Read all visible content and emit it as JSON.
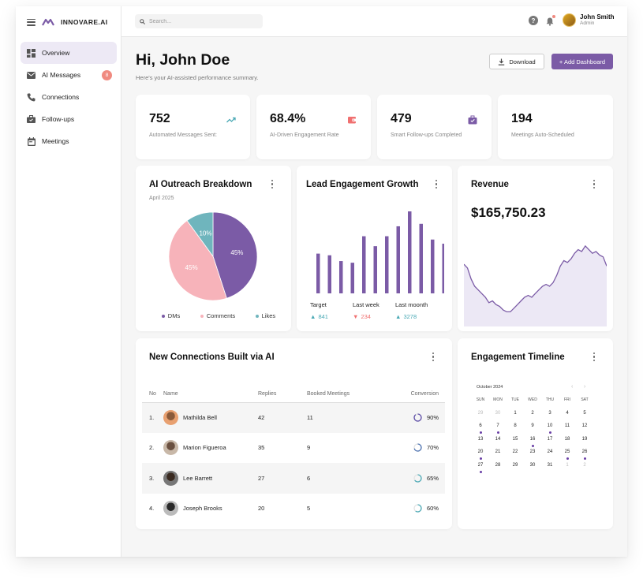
{
  "brand": {
    "name": "INNOVARE.AI"
  },
  "sidebar": {
    "items": [
      {
        "label": "Overview",
        "icon": "grid-icon",
        "active": true
      },
      {
        "label": "AI Messages",
        "icon": "mail-icon",
        "badge": "8"
      },
      {
        "label": "Connections",
        "icon": "phone-icon"
      },
      {
        "label": "Follow-ups",
        "icon": "briefcase-icon"
      },
      {
        "label": "Meetings",
        "icon": "calendar-icon"
      }
    ]
  },
  "topbar": {
    "search_placeholder": "Search...",
    "user": {
      "name": "John Smith",
      "role": "Admin"
    }
  },
  "header": {
    "greeting": "Hi, John Doe",
    "subtitle": "Here's your AI-assisted performance summary.",
    "download_label": "Download",
    "add_label": "+ Add Dashboard"
  },
  "stats": [
    {
      "value": "752",
      "label": "Automated Messages Sent:",
      "icon": "trend-up-icon"
    },
    {
      "value": "68.4%",
      "label": "AI-Driven Engagement Rate",
      "icon": "wallet-icon"
    },
    {
      "value": "479",
      "label": "Smart Follow-ups Completed",
      "icon": "briefcase-check-icon"
    },
    {
      "value": "194",
      "label": "Meetings Auto-Scheduled",
      "icon": ""
    }
  ],
  "outreach": {
    "title": "AI Outreach Breakdown",
    "period": "April 2025",
    "legend": [
      "DMs",
      "Comments",
      "Likes"
    ]
  },
  "engagement": {
    "title": "Lead Engagement Growth",
    "metrics": [
      {
        "label": "Target",
        "value": "841",
        "direction": "up"
      },
      {
        "label": "Last week",
        "value": "234",
        "direction": "down"
      },
      {
        "label": "Last moonth",
        "value": "3278",
        "direction": "up"
      }
    ]
  },
  "revenue": {
    "title": "Revenue",
    "amount": "$165,750.23"
  },
  "connections": {
    "title": "New Connections Built via AI",
    "columns": [
      "No",
      "Name",
      "Replies",
      "Booked Meetings",
      "Conversion"
    ],
    "rows": [
      {
        "no": "1.",
        "name": "Mathilda Bell",
        "replies": "42",
        "booked": "11",
        "conversion": "90%",
        "pct": 0.9
      },
      {
        "no": "2.",
        "name": "Marion Figueroa",
        "replies": "35",
        "booked": "9",
        "conversion": "70%",
        "pct": 0.7
      },
      {
        "no": "3.",
        "name": "Lee Barrett",
        "replies": "27",
        "booked": "6",
        "conversion": "65%",
        "pct": 0.65
      },
      {
        "no": "4.",
        "name": "Joseph Brooks",
        "replies": "20",
        "booked": "5",
        "conversion": "60%",
        "pct": 0.6
      }
    ]
  },
  "timeline": {
    "title": "Engagement Timeline",
    "month": "October 2024",
    "weekdays": [
      "SUN",
      "MON",
      "TUE",
      "WED",
      "THU",
      "FRI",
      "SAT"
    ],
    "days": [
      {
        "d": "29",
        "m": true
      },
      {
        "d": "30",
        "m": true
      },
      {
        "d": "1"
      },
      {
        "d": "2"
      },
      {
        "d": "3"
      },
      {
        "d": "4"
      },
      {
        "d": "5"
      },
      {
        "d": "6",
        "e": true
      },
      {
        "d": "7",
        "e": true
      },
      {
        "d": "8"
      },
      {
        "d": "9"
      },
      {
        "d": "10",
        "e": true
      },
      {
        "d": "11"
      },
      {
        "d": "12"
      },
      {
        "d": "13"
      },
      {
        "d": "14"
      },
      {
        "d": "15"
      },
      {
        "d": "16",
        "e": true
      },
      {
        "d": "17"
      },
      {
        "d": "18"
      },
      {
        "d": "19"
      },
      {
        "d": "20",
        "e": true
      },
      {
        "d": "21"
      },
      {
        "d": "22"
      },
      {
        "d": "23"
      },
      {
        "d": "24"
      },
      {
        "d": "25",
        "e": true
      },
      {
        "d": "26",
        "e": true
      },
      {
        "d": "27",
        "e": true
      },
      {
        "d": "28"
      },
      {
        "d": "29"
      },
      {
        "d": "30"
      },
      {
        "d": "31"
      },
      {
        "d": "1",
        "m": true
      },
      {
        "d": "2",
        "m": true
      }
    ]
  },
  "colors": {
    "accent": "#7b5ba6",
    "coral": "#f08a80",
    "teal": "#5fb0bb",
    "pink": "#f7b3ba"
  },
  "chart_data": [
    {
      "type": "pie",
      "categories": [
        "DMs",
        "Comments",
        "Likes"
      ],
      "values": [
        45,
        45,
        10
      ],
      "labels": [
        "45%",
        "45%",
        "10%"
      ],
      "colors": [
        "#7b5ba6",
        "#f7b3ba",
        "#6fb5bd"
      ]
    },
    {
      "type": "bar",
      "values": [
        48,
        46,
        39,
        37,
        69,
        57,
        69,
        81,
        99,
        84,
        65,
        60
      ],
      "ylim": [
        0,
        100
      ],
      "color": "#7b5ba6"
    },
    {
      "type": "area",
      "values": [
        34,
        32,
        26,
        22,
        20,
        18,
        16,
        13,
        14,
        12,
        11,
        9,
        8,
        8,
        10,
        12,
        14,
        16,
        17,
        16,
        18,
        20,
        22,
        23,
        22,
        24,
        28,
        33,
        36,
        35,
        37,
        40,
        42,
        41,
        44,
        42,
        40,
        41,
        39,
        38,
        33
      ],
      "ylim": [
        0,
        50
      ],
      "color": "#7b5ba6",
      "fill": "#ece8f5"
    }
  ]
}
